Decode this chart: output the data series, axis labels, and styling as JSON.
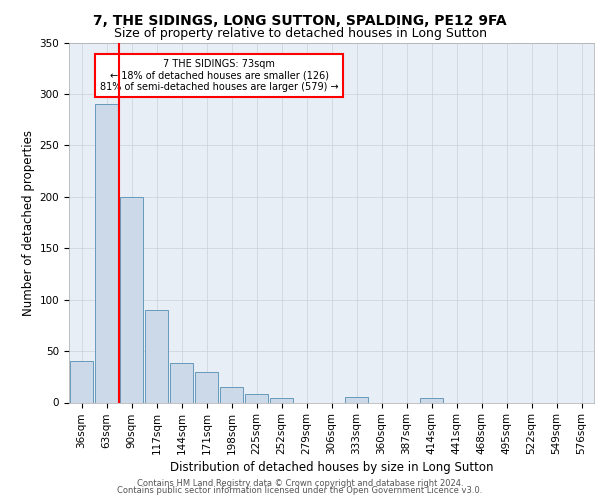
{
  "title": "7, THE SIDINGS, LONG SUTTON, SPALDING, PE12 9FA",
  "subtitle": "Size of property relative to detached houses in Long Sutton",
  "xlabel": "Distribution of detached houses by size in Long Sutton",
  "ylabel": "Number of detached properties",
  "footer_line1": "Contains HM Land Registry data © Crown copyright and database right 2024.",
  "footer_line2": "Contains public sector information licensed under the Open Government Licence v3.0.",
  "bin_labels": [
    "36sqm",
    "63sqm",
    "90sqm",
    "117sqm",
    "144sqm",
    "171sqm",
    "198sqm",
    "225sqm",
    "252sqm",
    "279sqm",
    "306sqm",
    "333sqm",
    "360sqm",
    "387sqm",
    "414sqm",
    "441sqm",
    "468sqm",
    "495sqm",
    "522sqm",
    "549sqm",
    "576sqm"
  ],
  "bar_values": [
    40,
    290,
    200,
    90,
    38,
    30,
    15,
    8,
    4,
    0,
    0,
    5,
    0,
    0,
    4,
    0,
    0,
    0,
    0,
    0,
    0
  ],
  "bar_color": "#ccd9e8",
  "bar_edge_color": "#6699bb",
  "red_line_x": 1.5,
  "annotation_box_label": "7 THE SIDINGS: 73sqm",
  "annotation_line1": "← 18% of detached houses are smaller (126)",
  "annotation_line2": "81% of semi-detached houses are larger (579) →",
  "ylim": [
    0,
    350
  ],
  "yticks": [
    0,
    50,
    100,
    150,
    200,
    250,
    300,
    350
  ],
  "background_color": "#e8eef5",
  "grid_color": "#c8d0dc",
  "title_fontsize": 10,
  "subtitle_fontsize": 9,
  "axis_label_fontsize": 8.5,
  "tick_fontsize": 7.5,
  "footer_fontsize": 6
}
